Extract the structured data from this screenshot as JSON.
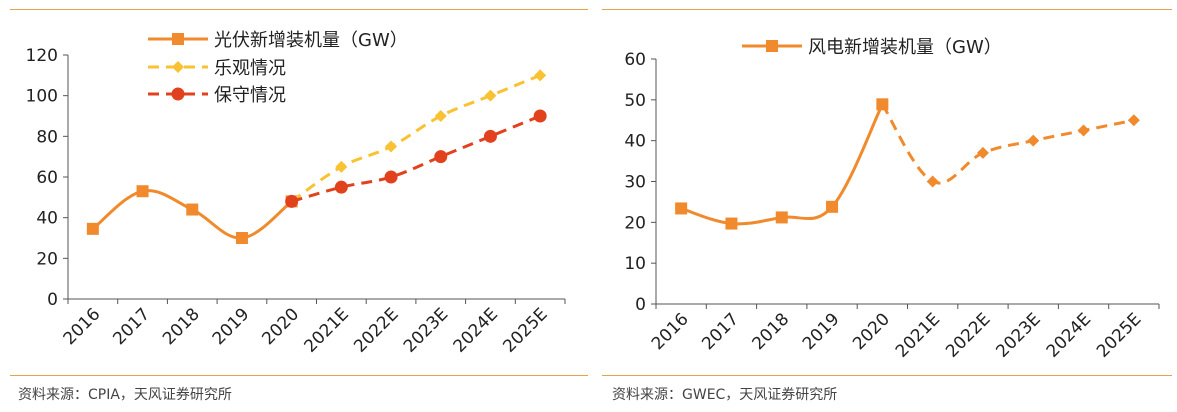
{
  "chart_data": [
    {
      "type": "line",
      "title": "",
      "categories": [
        "2016",
        "2017",
        "2018",
        "2019",
        "2020",
        "2021E",
        "2022E",
        "2023E",
        "2024E",
        "2025E"
      ],
      "ylim": [
        0,
        120
      ],
      "yticks": [
        0,
        20,
        40,
        60,
        80,
        100,
        120
      ],
      "grid": false,
      "legend_position": "top",
      "series": [
        {
          "name": "光伏新增装机量（GW）",
          "values": [
            34.5,
            53,
            44,
            30,
            48,
            null,
            null,
            null,
            null,
            null
          ],
          "color": "#f08a2c",
          "marker": "square",
          "style": "solid"
        },
        {
          "name": "乐观情况",
          "values": [
            null,
            null,
            null,
            null,
            48,
            65,
            75,
            90,
            100,
            110
          ],
          "color": "#f9c233",
          "marker": "diamond",
          "style": "dashed"
        },
        {
          "name": "保守情况",
          "values": [
            null,
            null,
            null,
            null,
            48,
            55,
            60,
            70,
            80,
            90
          ],
          "color": "#e2411e",
          "marker": "circle",
          "style": "dashed"
        }
      ],
      "source": "资料来源：CPIA，天风证券研究所"
    },
    {
      "type": "line",
      "title": "",
      "categories": [
        "2016",
        "2017",
        "2018",
        "2019",
        "2020",
        "2021E",
        "2022E",
        "2023E",
        "2024E",
        "2025E"
      ],
      "ylim": [
        0,
        60
      ],
      "yticks": [
        0,
        10,
        20,
        30,
        40,
        50,
        60
      ],
      "grid": false,
      "legend_position": "top",
      "series": [
        {
          "name": "风电新增装机量（GW）",
          "values": [
            23.4,
            19.7,
            21.2,
            23.8,
            48.9,
            null,
            null,
            null,
            null,
            null
          ],
          "color": "#f08a2c",
          "marker": "square",
          "style": "solid"
        },
        {
          "name": "",
          "values": [
            null,
            null,
            null,
            null,
            48.9,
            30,
            37,
            40,
            42.5,
            45
          ],
          "color": "#f08a2c",
          "marker": "diamond",
          "style": "dashed"
        }
      ],
      "source": "资料来源：GWEC，天风证券研究所"
    }
  ]
}
